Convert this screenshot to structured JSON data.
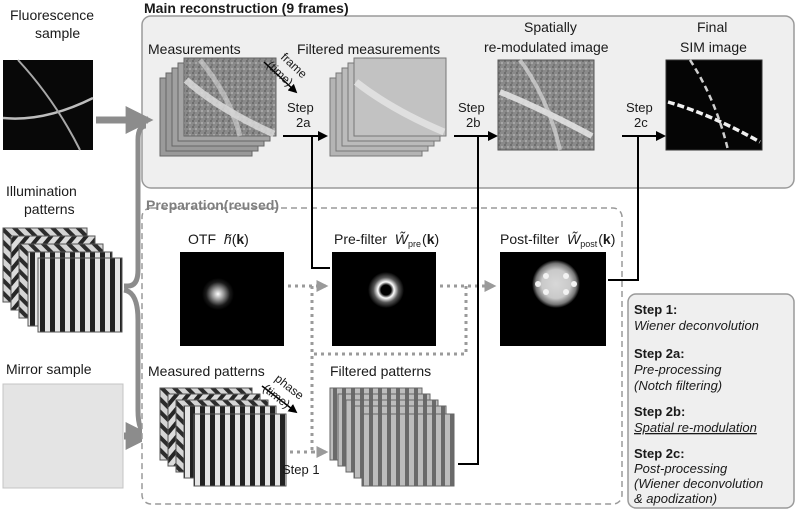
{
  "main": {
    "title": "Main reconstruction (9 frames)",
    "measurements": "Measurements",
    "filtered_measurements": "Filtered measurements",
    "remod_line1": "Spatially",
    "remod_line2": "re-modulated image",
    "final_line1": "Final",
    "final_line2": "SIM image",
    "frame_axis_1": "frame",
    "frame_axis_2": "(time)"
  },
  "left": {
    "fluor_1": "Fluorescence",
    "fluor_2": "sample",
    "illum_1": "Illumination",
    "illum_2": "patterns",
    "mirror": "Mirror sample"
  },
  "steps": {
    "step": "Step",
    "s2a": "2a",
    "s2b": "2b",
    "s2c": "2c",
    "step1": "Step 1"
  },
  "prep": {
    "title": "Preparation(reused)",
    "otf_prefix": "OTF",
    "otf_sym": "h̃",
    "prefilter_prefix": "Pre-filter",
    "prefilter_sub": "pre",
    "postfilter_prefix": "Post-filter",
    "postfilter_sub": "post",
    "wtilde": "W̃",
    "k_open": "(",
    "k_bold": "k",
    "k_close": ")",
    "measured_patterns": "Measured patterns",
    "filtered_patterns": "Filtered patterns",
    "phase_axis_1": "phase",
    "phase_axis_2": "(time)"
  },
  "legend": {
    "s1_title": "Step 1:",
    "s1_desc": "Wiener deconvolution",
    "s2a_title": "Step 2a:",
    "s2a_desc1": "Pre-processing",
    "s2a_desc2": "(Notch filtering)",
    "s2b_title": "Step 2b:",
    "s2b_desc": "Spatial re-modulation",
    "s2c_title": "Step 2c:",
    "s2c_desc1": "Post-processing",
    "s2c_desc2": "(Wiener deconvolution",
    "s2c_desc3": "& apodization)"
  },
  "colors": {
    "panel_bg": "#efefef",
    "panel_border": "#9a9a9a",
    "dashed": "#9a9a9a",
    "arrow_gray": "#8c8c8c",
    "arrow_black": "#000000"
  }
}
